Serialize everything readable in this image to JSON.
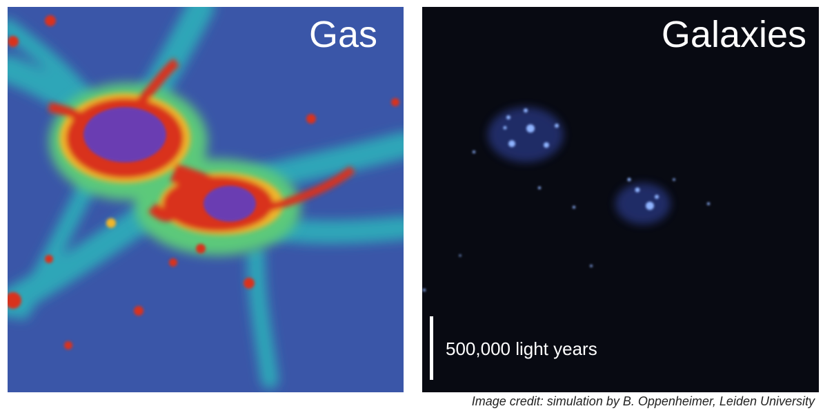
{
  "panels": {
    "gas": {
      "title": "Gas"
    },
    "galaxies": {
      "title": "Galaxies"
    }
  },
  "scale_bar": {
    "label": "500,000 light years"
  },
  "credit": "Image credit: simulation by B. Oppenheimer, Leiden University",
  "colors": {
    "gas_background": "#3a56a8",
    "gas_filament": "#2fa6b8",
    "gas_halo": "#5cc97a",
    "gas_warm": "#f0b62a",
    "gas_hot": "#d9331f",
    "gas_core": "#6a3db2",
    "galaxy_background": "#080a12",
    "galaxy_glow": "#8fb4ff"
  }
}
